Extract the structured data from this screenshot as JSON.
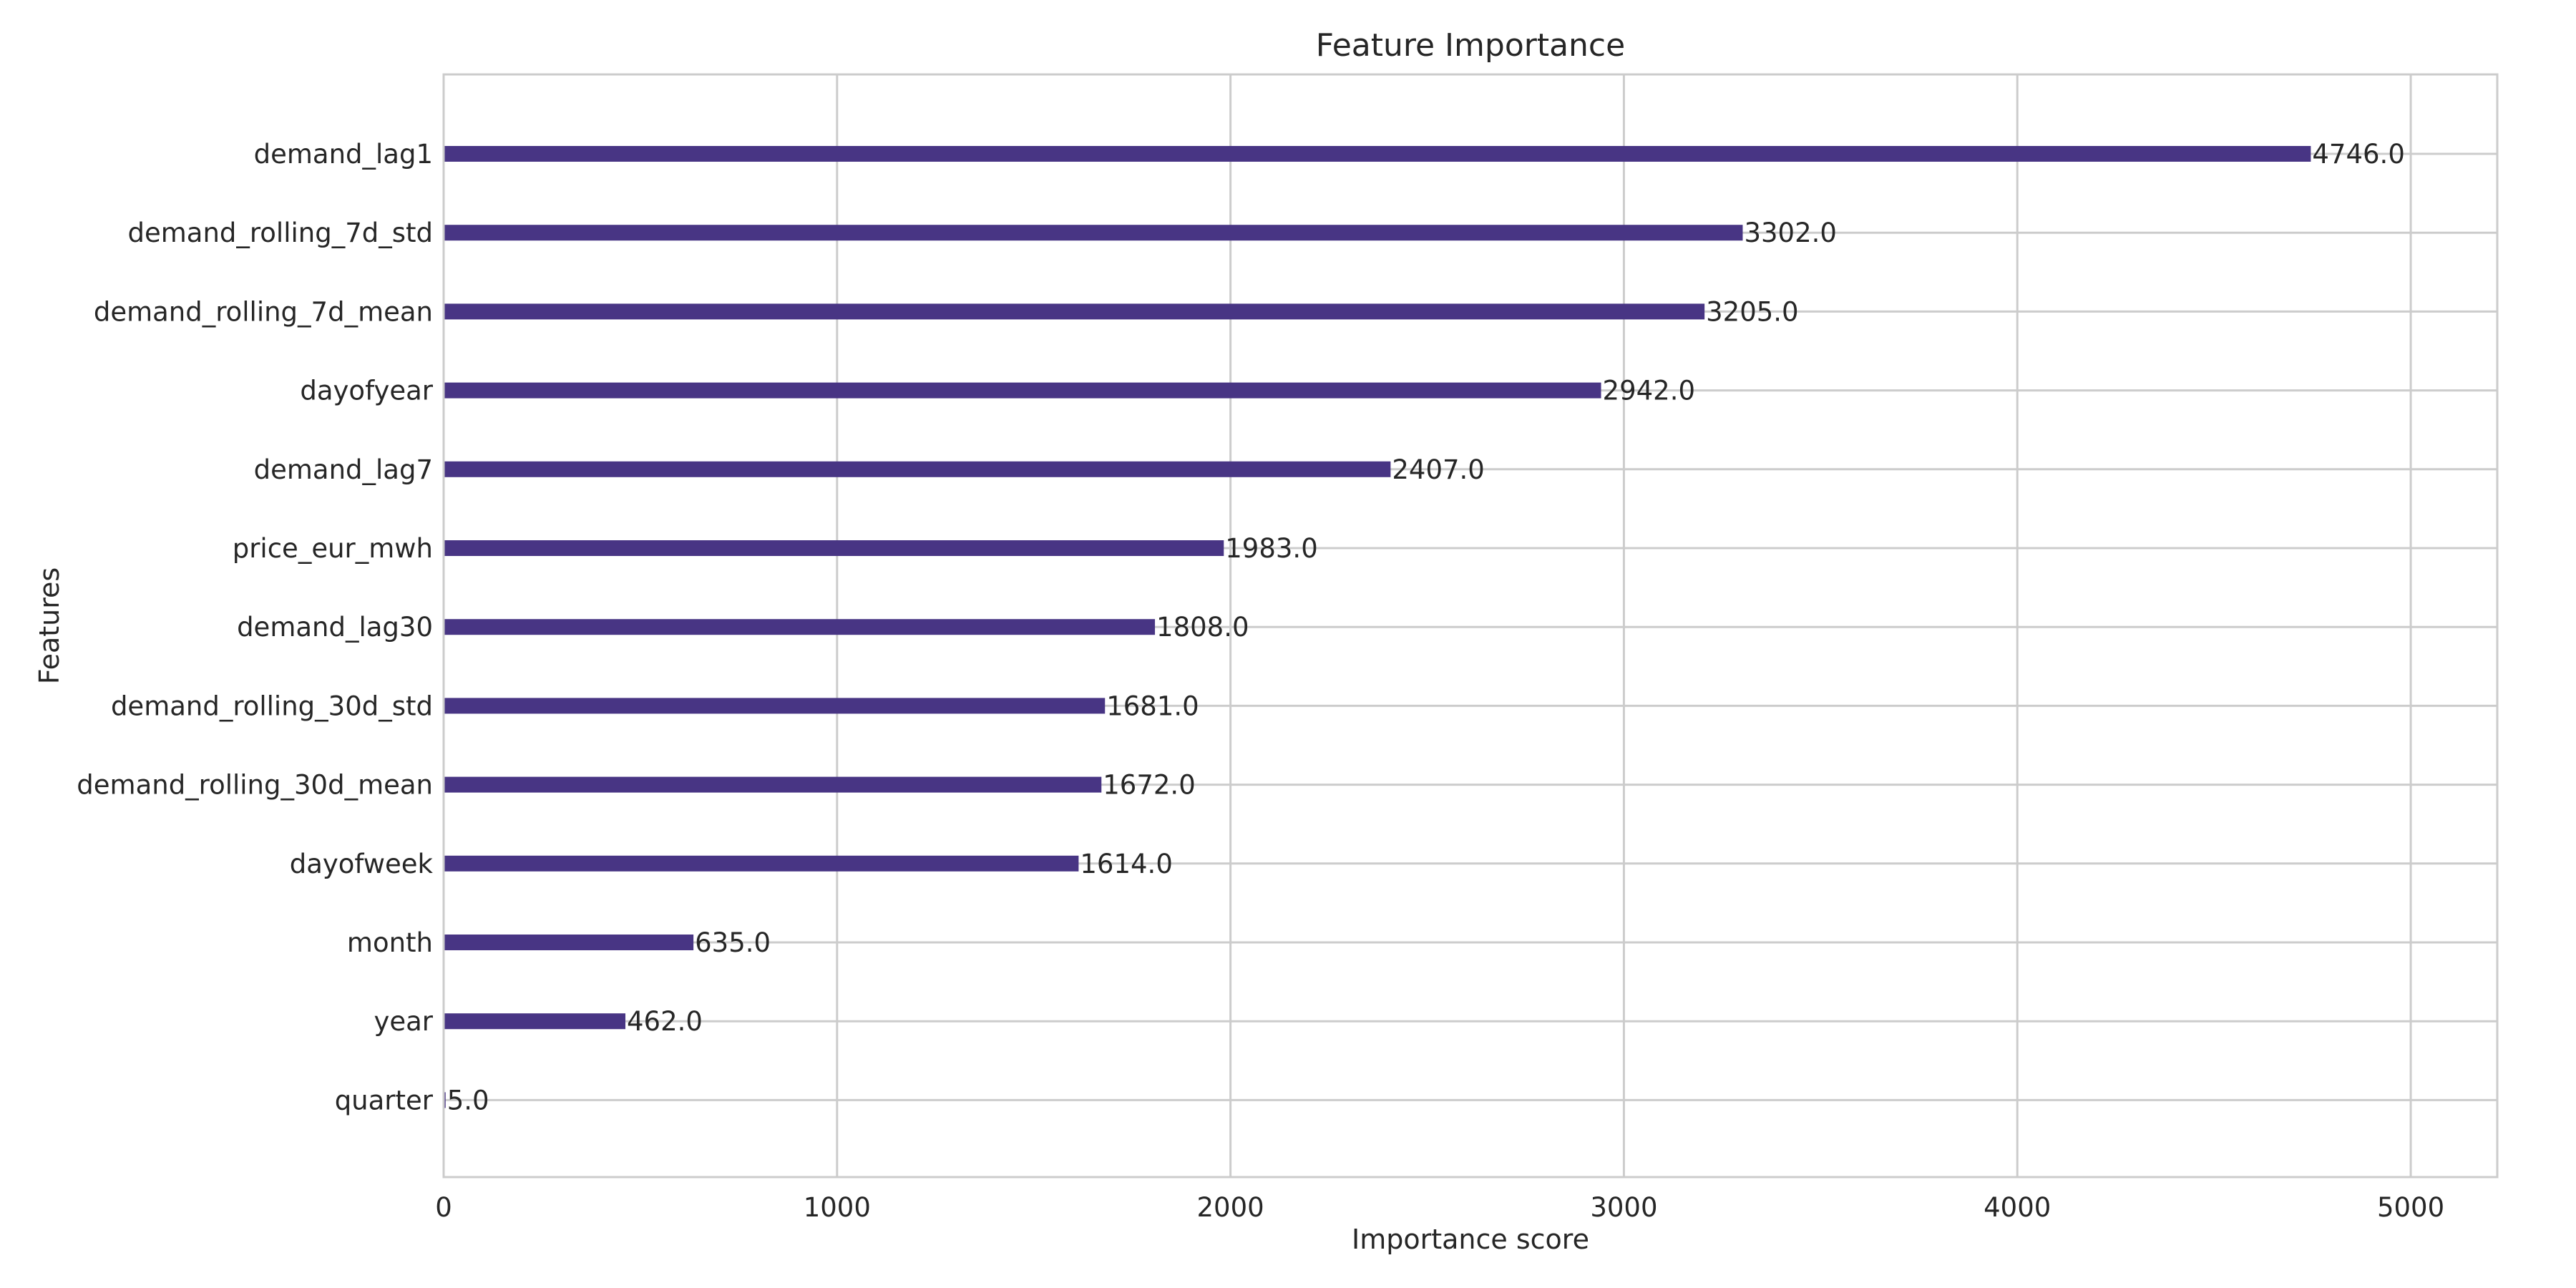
{
  "chart_data": {
    "type": "bar",
    "orientation": "horizontal",
    "title": "Feature Importance",
    "xlabel": "Importance score",
    "ylabel": "Features",
    "xlim": [
      0,
      5220
    ],
    "xticks": [
      0,
      1000,
      2000,
      3000,
      4000,
      5000
    ],
    "grid": true,
    "bar_color": "#483584",
    "categories": [
      "demand_lag1",
      "demand_rolling_7d_std",
      "demand_rolling_7d_mean",
      "dayofyear",
      "demand_lag7",
      "price_eur_mwh",
      "demand_lag30",
      "demand_rolling_30d_std",
      "demand_rolling_30d_mean",
      "dayofweek",
      "month",
      "year",
      "quarter"
    ],
    "values": [
      4746.0,
      3302.0,
      3205.0,
      2942.0,
      2407.0,
      1983.0,
      1808.0,
      1681.0,
      1672.0,
      1614.0,
      635.0,
      462.0,
      5.0
    ],
    "value_labels": [
      "4746.0",
      "3302.0",
      "3205.0",
      "2942.0",
      "2407.0",
      "1983.0",
      "1808.0",
      "1681.0",
      "1672.0",
      "1614.0",
      "635.0",
      "462.0",
      "5.0"
    ]
  }
}
